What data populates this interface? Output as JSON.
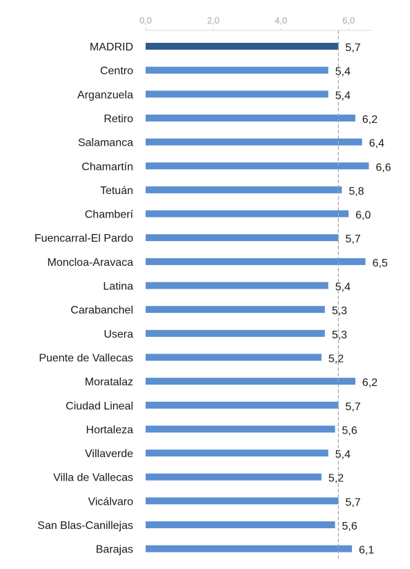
{
  "chart_data": {
    "type": "bar",
    "orientation": "horizontal",
    "categories": [
      "MADRID",
      "Centro",
      "Arganzuela",
      "Retiro",
      "Salamanca",
      "Chamartín",
      "Tetuán",
      "Chamberí",
      "Fuencarral-El Pardo",
      "Moncloa-Aravaca",
      "Latina",
      "Carabanchel",
      "Usera",
      "Puente de Vallecas",
      "Moratalaz",
      "Ciudad Lineal",
      "Hortaleza",
      "Villaverde",
      "Villa de Vallecas",
      "Vicálvaro",
      "San Blas-Canillejas",
      "Barajas"
    ],
    "values": [
      5.7,
      5.4,
      5.4,
      6.2,
      6.4,
      6.6,
      5.8,
      6.0,
      5.7,
      6.5,
      5.4,
      5.3,
      5.3,
      5.2,
      6.2,
      5.7,
      5.6,
      5.4,
      5.2,
      5.7,
      5.6,
      6.1
    ],
    "value_labels": [
      "5,7",
      "5,4",
      "5,4",
      "6,2",
      "6,4",
      "6,6",
      "5,8",
      "6,0",
      "5,7",
      "6,5",
      "5,4",
      "5,3",
      "5,3",
      "5,2",
      "6,2",
      "5,7",
      "5,6",
      "5,4",
      "5,2",
      "5,7",
      "5,6",
      "6,1"
    ],
    "xticks": [
      0,
      2,
      4,
      6
    ],
    "xtick_labels": [
      "0,0",
      "2,0",
      "4,0",
      "6,0"
    ],
    "xlim": [
      0,
      6.7
    ],
    "axis_position": "top",
    "reference_line": {
      "value": 5.7,
      "style": "dashed"
    },
    "highlight_category": "MADRID",
    "colors": {
      "highlight": "#2e5b8c",
      "bar": "#5b8fd1",
      "reference": "#a6a6a6",
      "axis": "#d9d9d9"
    },
    "title": "",
    "xlabel": "",
    "ylabel": "",
    "grid": false
  }
}
